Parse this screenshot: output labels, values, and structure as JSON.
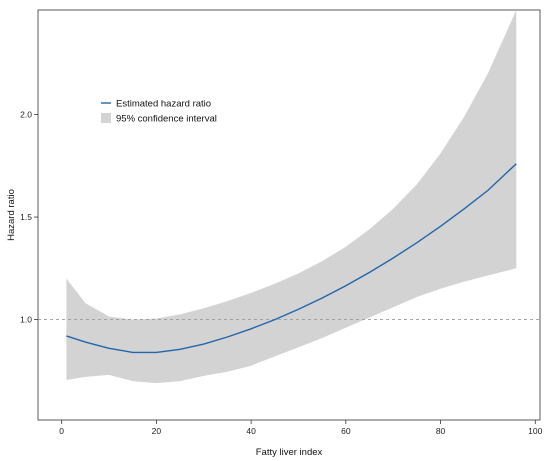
{
  "chart_data": {
    "type": "line",
    "title": "",
    "xlabel": "Fatty liver index",
    "ylabel": "Hazard ratio",
    "xlim": [
      -5,
      101
    ],
    "ylim": [
      0.51,
      2.51
    ],
    "x_ticks": [
      0,
      20,
      40,
      60,
      80,
      100
    ],
    "y_ticks": [
      1.0,
      1.5,
      2.0
    ],
    "reference_line": {
      "y": 1.0,
      "style": "dashed"
    },
    "legend_position": "upper-left",
    "grid": false,
    "series": [
      {
        "name": "Estimated hazard ratio",
        "color": "#2166ac",
        "x": [
          1,
          5,
          10,
          15,
          20,
          25,
          30,
          35,
          40,
          45,
          50,
          55,
          60,
          65,
          70,
          75,
          80,
          85,
          90,
          96
        ],
        "y": [
          0.92,
          0.89,
          0.86,
          0.84,
          0.84,
          0.855,
          0.88,
          0.915,
          0.955,
          1.0,
          1.05,
          1.105,
          1.165,
          1.23,
          1.3,
          1.375,
          1.455,
          1.54,
          1.63,
          1.76
        ]
      }
    ],
    "confidence_band": {
      "name": "95% confidence interval",
      "color": "#d3d3d3",
      "x": [
        1,
        5,
        10,
        15,
        20,
        25,
        30,
        35,
        40,
        45,
        50,
        55,
        60,
        65,
        70,
        75,
        80,
        85,
        90,
        96
      ],
      "lower": [
        0.705,
        0.72,
        0.73,
        0.7,
        0.69,
        0.7,
        0.725,
        0.745,
        0.775,
        0.82,
        0.865,
        0.91,
        0.96,
        1.01,
        1.06,
        1.11,
        1.15,
        1.185,
        1.215,
        1.25
      ],
      "upper": [
        1.2,
        1.08,
        1.015,
        1.0,
        1.005,
        1.025,
        1.055,
        1.09,
        1.13,
        1.175,
        1.225,
        1.285,
        1.355,
        1.44,
        1.54,
        1.66,
        1.81,
        1.99,
        2.2,
        2.51
      ]
    }
  }
}
